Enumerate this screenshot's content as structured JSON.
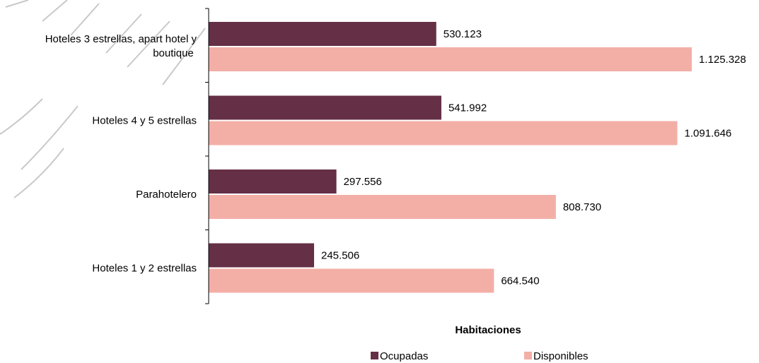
{
  "chart_data": {
    "type": "bar",
    "orientation": "horizontal",
    "categories": [
      "Hoteles 3 estrellas, apart hotel y boutique",
      "Hoteles 4 y 5 estrellas",
      "Parahotelero",
      "Hoteles 1 y 2 estrellas"
    ],
    "series": [
      {
        "name": "Ocupadas",
        "color": "#652f46",
        "values": [
          530123,
          541992,
          297556,
          245506
        ],
        "labels": [
          "530.123",
          "541.992",
          "297.556",
          "245.506"
        ]
      },
      {
        "name": "Disponibles",
        "color": "#f3afa6",
        "values": [
          1125328,
          1091646,
          808730,
          664540
        ],
        "labels": [
          "1.125.328",
          "1.091.646",
          "808.730",
          "664.540"
        ]
      }
    ],
    "xlabel": "Habitaciones",
    "xlim": [
      0,
      1300000
    ],
    "grid": false,
    "legend": "bottom"
  }
}
